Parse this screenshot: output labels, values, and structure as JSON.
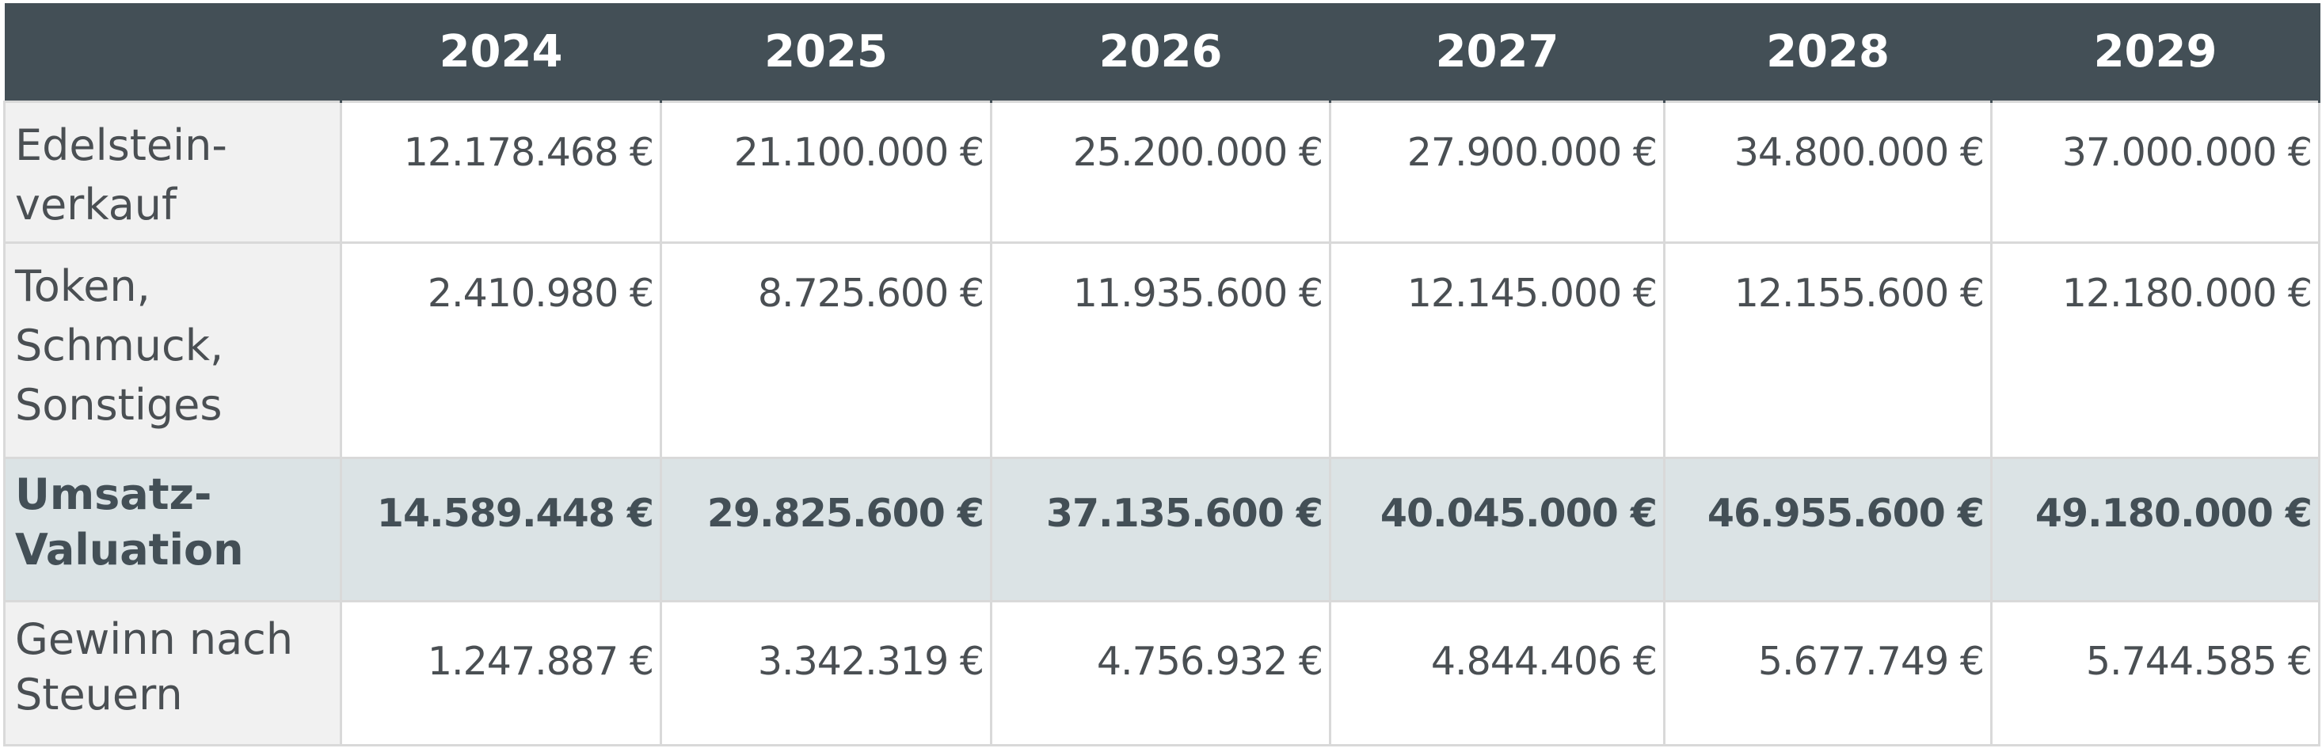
{
  "header": {
    "corner": "",
    "years": [
      "2024",
      "2025",
      "2026",
      "2027",
      "2028",
      "2029"
    ]
  },
  "rows": [
    {
      "label": "Edelstein-verkauf",
      "values": [
        "12.178.468 €",
        "21.100.000 €",
        "25.200.000 €",
        "27.900.000 €",
        "34.800.000 €",
        "37.000.000 €"
      ]
    },
    {
      "label": "Token, Schmuck, Sonstiges",
      "values": [
        "2.410.980 €",
        "8.725.600 €",
        "11.935.600 €",
        "12.145.000 €",
        "12.155.600 €",
        "12.180.000 €"
      ]
    },
    {
      "label": "Umsatz-Valuation",
      "values": [
        "14.589.448 €",
        "29.825.600 €",
        "37.135.600 €",
        "40.045.000 €",
        "46.955.600 €",
        "49.180.000 €"
      ]
    },
    {
      "label": "Gewinn nach Steuern",
      "values": [
        "1.247.887 €",
        "3.342.319 €",
        "4.756.932 €",
        "4.844.406 €",
        "5.677.749 €",
        "5.744.585 €"
      ]
    }
  ],
  "colors": {
    "header_bg": "#434f56",
    "header_text": "#ffffff",
    "label_bg": "#f1f1f1",
    "total_bg": "#dbe3e5",
    "grid": "#d9d9d9",
    "text": "#4a4f53"
  }
}
